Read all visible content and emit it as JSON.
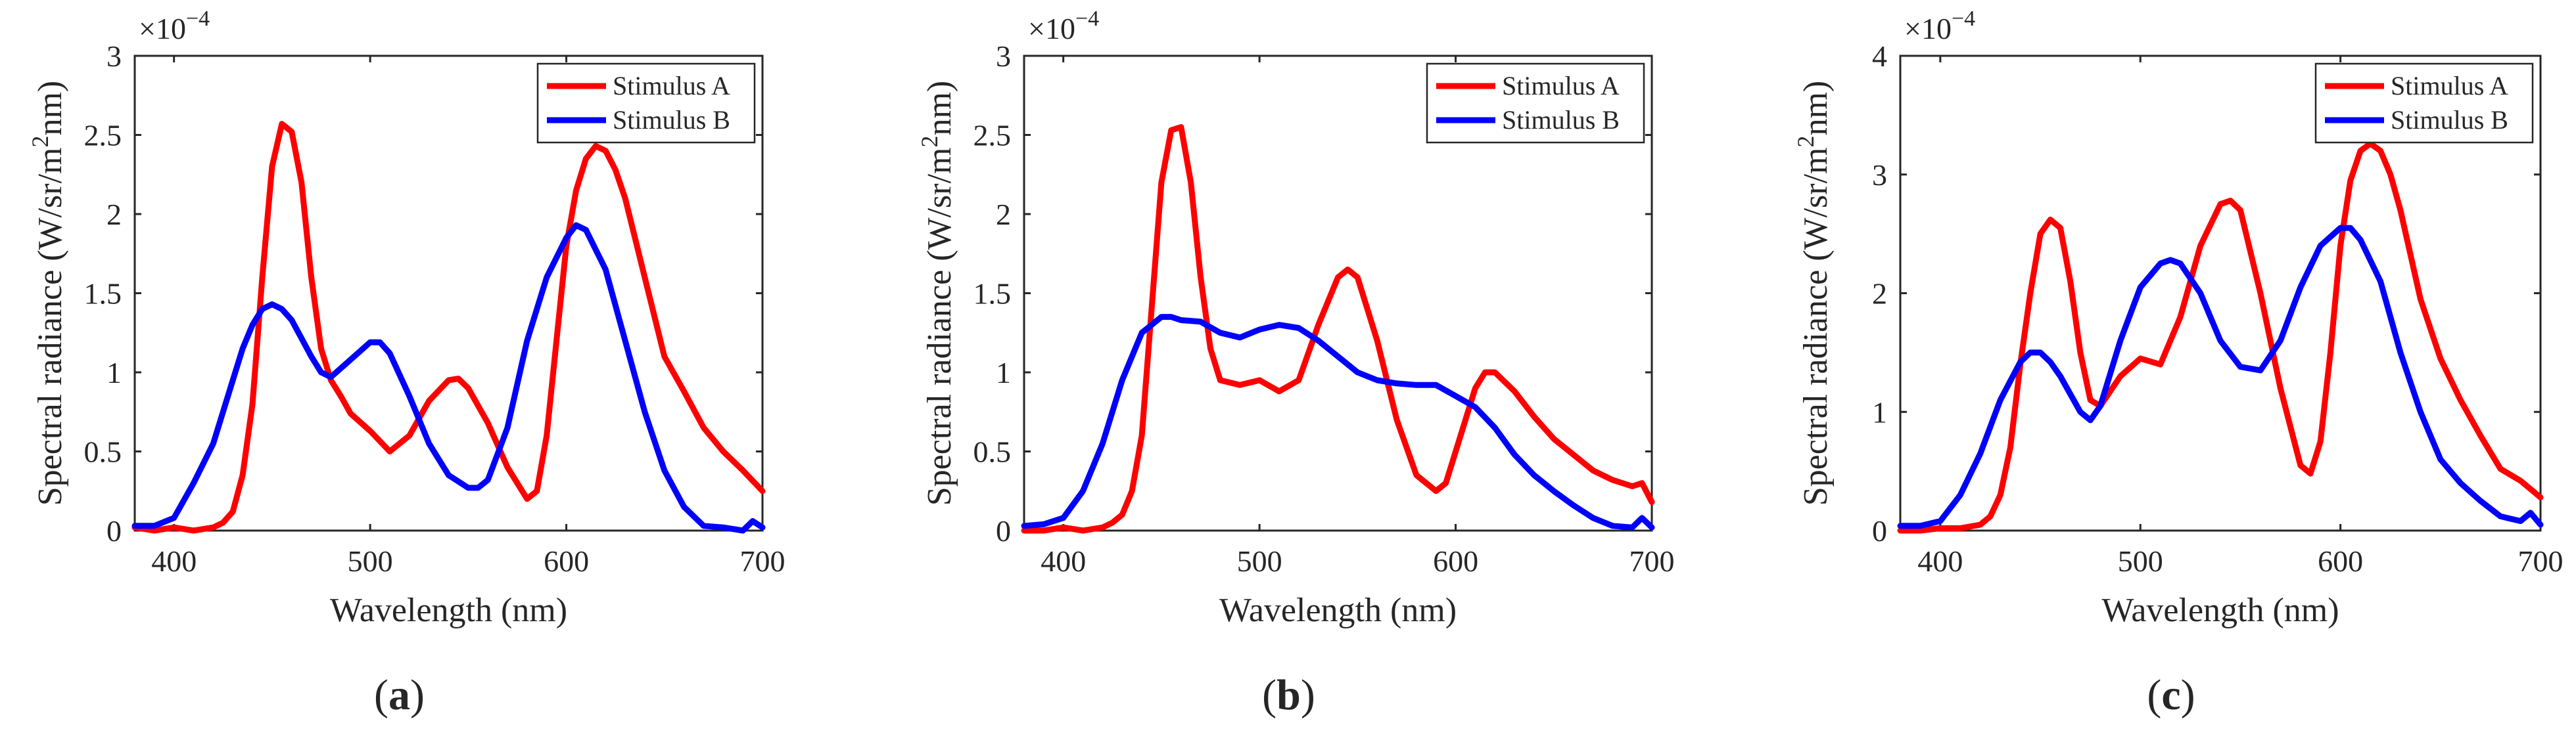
{
  "chart_data": [
    {
      "type": "line",
      "panel_label": "a",
      "xlabel": "Wavelength (nm)",
      "ylabel": "Spectral radiance (W/sr/m2nm)",
      "y_exponent": "×10−4",
      "xlim": [
        380,
        700
      ],
      "ylim": [
        0,
        3
      ],
      "xticks": [
        400,
        500,
        600,
        700
      ],
      "yticks": [
        0,
        0.5,
        1,
        1.5,
        2,
        2.5,
        3
      ],
      "ytick_labels": [
        "0",
        "0.5",
        "1",
        "1.5",
        "2",
        "2.5",
        "3"
      ],
      "legend_position": "top-right",
      "series": [
        {
          "name": "Stimulus A",
          "color": "#ff0000",
          "x": [
            380,
            390,
            400,
            410,
            420,
            425,
            430,
            435,
            440,
            445,
            450,
            455,
            460,
            465,
            470,
            475,
            480,
            485,
            490,
            500,
            510,
            520,
            530,
            540,
            545,
            550,
            560,
            570,
            580,
            585,
            590,
            595,
            600,
            605,
            610,
            615,
            620,
            625,
            630,
            640,
            650,
            660,
            670,
            680,
            690,
            700
          ],
          "y": [
            0.02,
            0.0,
            0.02,
            0.0,
            0.02,
            0.05,
            0.12,
            0.35,
            0.8,
            1.6,
            2.3,
            2.57,
            2.52,
            2.2,
            1.6,
            1.15,
            0.95,
            0.85,
            0.74,
            0.63,
            0.5,
            0.6,
            0.82,
            0.95,
            0.96,
            0.9,
            0.68,
            0.4,
            0.2,
            0.25,
            0.6,
            1.2,
            1.8,
            2.15,
            2.35,
            2.43,
            2.4,
            2.28,
            2.1,
            1.6,
            1.1,
            0.88,
            0.65,
            0.5,
            0.38,
            0.25
          ]
        },
        {
          "name": "Stimulus B",
          "color": "#0000ff",
          "x": [
            380,
            390,
            400,
            410,
            420,
            430,
            435,
            440,
            445,
            450,
            455,
            460,
            470,
            475,
            480,
            490,
            500,
            505,
            510,
            520,
            530,
            540,
            550,
            555,
            560,
            570,
            580,
            590,
            600,
            605,
            610,
            620,
            630,
            640,
            650,
            660,
            670,
            680,
            690,
            695,
            700
          ],
          "y": [
            0.03,
            0.03,
            0.08,
            0.3,
            0.55,
            0.95,
            1.15,
            1.3,
            1.4,
            1.43,
            1.4,
            1.33,
            1.1,
            1.0,
            0.97,
            1.08,
            1.19,
            1.19,
            1.12,
            0.85,
            0.55,
            0.35,
            0.27,
            0.27,
            0.32,
            0.65,
            1.2,
            1.6,
            1.85,
            1.93,
            1.9,
            1.65,
            1.2,
            0.75,
            0.38,
            0.15,
            0.03,
            0.02,
            0.0,
            0.06,
            0.02
          ]
        }
      ]
    },
    {
      "type": "line",
      "panel_label": "b",
      "xlabel": "Wavelength (nm)",
      "ylabel": "Spectral radiance (W/sr/m2nm)",
      "y_exponent": "×10−4",
      "xlim": [
        380,
        700
      ],
      "ylim": [
        0,
        3
      ],
      "xticks": [
        400,
        500,
        600,
        700
      ],
      "yticks": [
        0,
        0.5,
        1,
        1.5,
        2,
        2.5,
        3
      ],
      "ytick_labels": [
        "0",
        "0.5",
        "1",
        "1.5",
        "2",
        "2.5",
        "3"
      ],
      "legend_position": "top-right",
      "series": [
        {
          "name": "Stimulus A",
          "color": "#ff0000",
          "x": [
            380,
            390,
            400,
            410,
            420,
            425,
            430,
            435,
            440,
            445,
            450,
            455,
            460,
            465,
            470,
            475,
            480,
            490,
            500,
            510,
            520,
            530,
            540,
            545,
            550,
            560,
            570,
            580,
            590,
            595,
            600,
            610,
            615,
            620,
            630,
            640,
            650,
            660,
            670,
            680,
            690,
            695,
            700
          ],
          "y": [
            0.0,
            0.0,
            0.02,
            0.0,
            0.02,
            0.05,
            0.1,
            0.25,
            0.6,
            1.4,
            2.2,
            2.53,
            2.55,
            2.2,
            1.6,
            1.15,
            0.95,
            0.92,
            0.95,
            0.88,
            0.95,
            1.3,
            1.6,
            1.65,
            1.6,
            1.2,
            0.7,
            0.35,
            0.25,
            0.3,
            0.5,
            0.9,
            1.0,
            1.0,
            0.88,
            0.72,
            0.58,
            0.48,
            0.38,
            0.32,
            0.28,
            0.3,
            0.18
          ]
        },
        {
          "name": "Stimulus B",
          "color": "#0000ff",
          "x": [
            380,
            390,
            400,
            410,
            420,
            430,
            440,
            450,
            455,
            460,
            470,
            480,
            490,
            500,
            510,
            520,
            530,
            540,
            550,
            560,
            570,
            580,
            590,
            600,
            610,
            620,
            630,
            640,
            650,
            660,
            670,
            680,
            690,
            695,
            700
          ],
          "y": [
            0.03,
            0.04,
            0.08,
            0.25,
            0.55,
            0.95,
            1.25,
            1.35,
            1.35,
            1.33,
            1.32,
            1.25,
            1.22,
            1.27,
            1.3,
            1.28,
            1.2,
            1.1,
            1.0,
            0.95,
            0.93,
            0.92,
            0.92,
            0.85,
            0.78,
            0.65,
            0.48,
            0.35,
            0.25,
            0.16,
            0.08,
            0.03,
            0.02,
            0.08,
            0.02
          ]
        }
      ]
    },
    {
      "type": "line",
      "panel_label": "c",
      "xlabel": "Wavelength (nm)",
      "ylabel": "Spectral radiance (W/sr/m2nm)",
      "y_exponent": "×10−4",
      "xlim": [
        380,
        700
      ],
      "ylim": [
        0,
        4
      ],
      "xticks": [
        400,
        500,
        600,
        700
      ],
      "yticks": [
        0,
        1,
        2,
        3,
        4
      ],
      "ytick_labels": [
        "0",
        "1",
        "2",
        "3",
        "4"
      ],
      "legend_position": "top-right",
      "series": [
        {
          "name": "Stimulus A",
          "color": "#ff0000",
          "x": [
            380,
            390,
            400,
            410,
            420,
            425,
            430,
            435,
            440,
            445,
            450,
            455,
            460,
            465,
            470,
            475,
            480,
            490,
            500,
            510,
            520,
            530,
            540,
            545,
            550,
            560,
            570,
            580,
            585,
            590,
            595,
            600,
            605,
            610,
            615,
            620,
            625,
            630,
            640,
            650,
            660,
            670,
            680,
            690,
            700
          ],
          "y": [
            0.0,
            0.0,
            0.02,
            0.02,
            0.05,
            0.12,
            0.3,
            0.7,
            1.4,
            2.0,
            2.5,
            2.62,
            2.55,
            2.1,
            1.5,
            1.1,
            1.05,
            1.3,
            1.45,
            1.4,
            1.8,
            2.4,
            2.75,
            2.78,
            2.7,
            2.0,
            1.2,
            0.55,
            0.48,
            0.75,
            1.5,
            2.4,
            2.95,
            3.2,
            3.26,
            3.2,
            3.0,
            2.7,
            1.95,
            1.45,
            1.1,
            0.8,
            0.52,
            0.42,
            0.28
          ]
        },
        {
          "name": "Stimulus B",
          "color": "#0000ff",
          "x": [
            380,
            390,
            400,
            410,
            420,
            430,
            440,
            445,
            450,
            455,
            460,
            470,
            475,
            480,
            490,
            500,
            510,
            515,
            520,
            530,
            540,
            550,
            560,
            570,
            580,
            590,
            600,
            605,
            610,
            620,
            630,
            640,
            650,
            660,
            670,
            680,
            690,
            695,
            700
          ],
          "y": [
            0.04,
            0.04,
            0.08,
            0.3,
            0.65,
            1.1,
            1.42,
            1.5,
            1.5,
            1.42,
            1.3,
            1.0,
            0.93,
            1.05,
            1.6,
            2.05,
            2.25,
            2.28,
            2.25,
            2.0,
            1.6,
            1.38,
            1.35,
            1.6,
            2.05,
            2.4,
            2.55,
            2.55,
            2.45,
            2.1,
            1.5,
            1.0,
            0.6,
            0.4,
            0.25,
            0.12,
            0.08,
            0.15,
            0.05
          ]
        }
      ]
    }
  ]
}
